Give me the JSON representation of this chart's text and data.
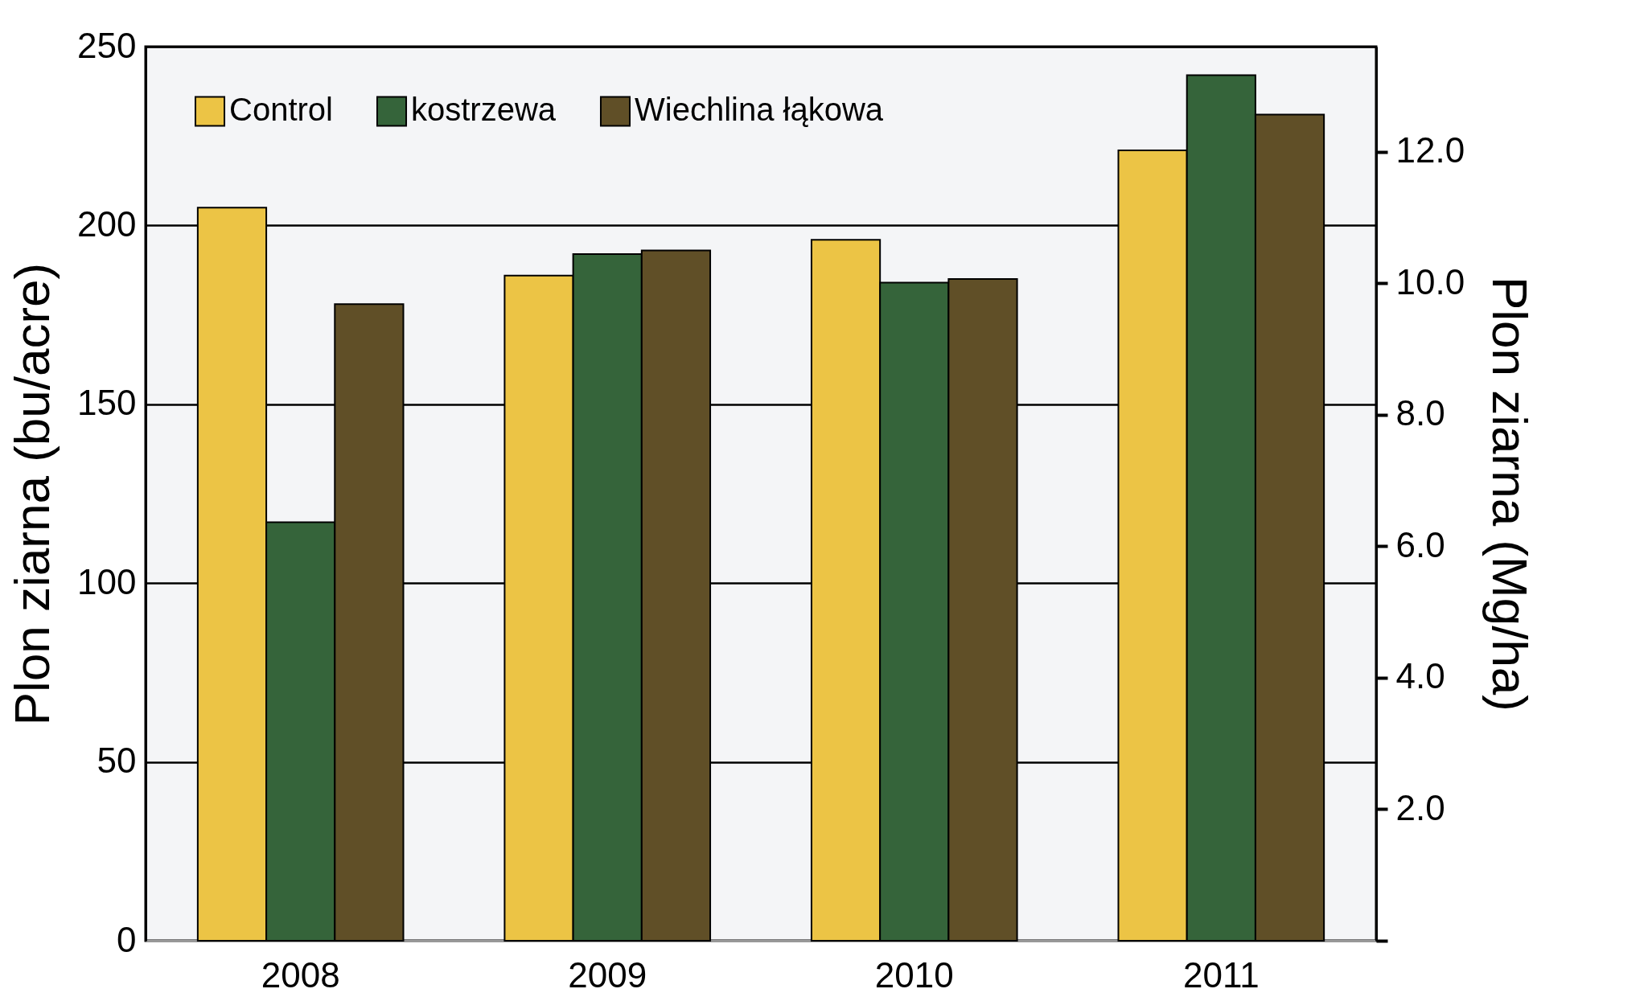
{
  "chart_data": {
    "type": "bar",
    "ylabel": "Plon ziarna (bu/acre)",
    "y2label": "Plon ziarna (Mg/ha)",
    "categories": [
      "2008",
      "2009",
      "2010",
      "2011"
    ],
    "series": [
      {
        "name": "Control",
        "color": "#ecc445",
        "values": [
          205,
          186,
          196,
          221
        ]
      },
      {
        "name": "kostrzewa",
        "color": "#35643a",
        "values": [
          117,
          192,
          184,
          242
        ]
      },
      {
        "name": "Wiechlina łąkowa",
        "color": "#604f27",
        "values": [
          178,
          193,
          185,
          231
        ]
      }
    ],
    "ylim": [
      0,
      250
    ],
    "yticks": [
      0,
      50,
      100,
      150,
      200,
      250
    ],
    "y2lim": [
      0,
      13.6
    ],
    "y2ticks": [
      {
        "value": 0,
        "label": null
      },
      {
        "value": 2,
        "label": "2.0"
      },
      {
        "value": 4,
        "label": "4.0"
      },
      {
        "value": 6,
        "label": "6.0"
      },
      {
        "value": 8,
        "label": "8.0"
      },
      {
        "value": 10,
        "label": "10.0"
      },
      {
        "value": 12,
        "label": "12.0"
      }
    ],
    "grid": "y",
    "legend": "top left"
  }
}
